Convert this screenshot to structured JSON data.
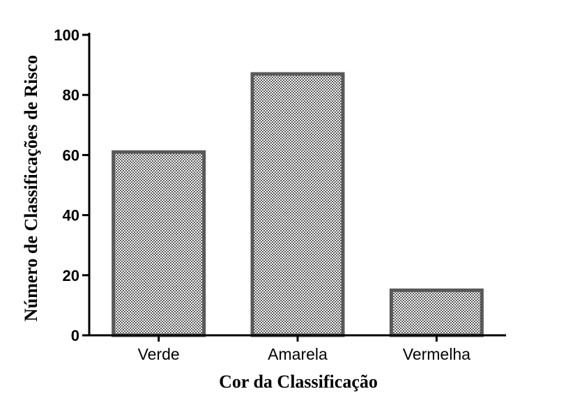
{
  "chart_data": {
    "type": "bar",
    "categories": [
      "Verde",
      "Amarela",
      "Vermelha"
    ],
    "values": [
      61,
      87,
      15
    ],
    "xlabel": "Cor da Classificação",
    "ylabel": "Número de Classificações de Risco",
    "ylim": [
      0,
      100
    ],
    "yticks": [
      "0",
      "20",
      "40",
      "60",
      "80",
      "100"
    ],
    "grid": false,
    "legend": "none",
    "bar_fill": "checkered gray pattern",
    "bar_edge_color": "#595959"
  }
}
